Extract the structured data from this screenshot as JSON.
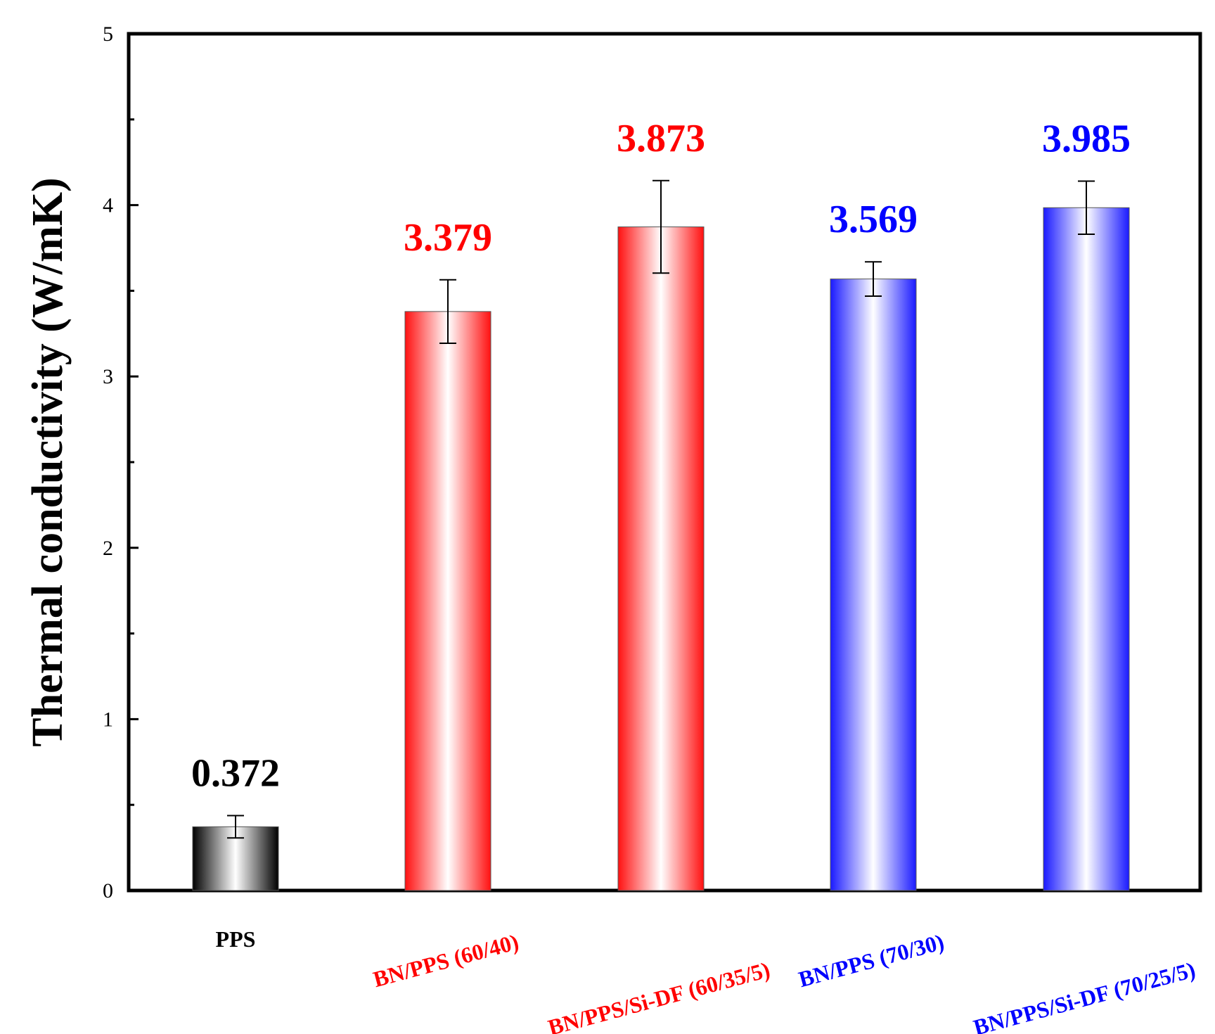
{
  "chart_data": {
    "type": "bar",
    "title": "",
    "xlabel": "",
    "ylabel": "Thermal conductivity (W/mK)",
    "ylim": [
      0,
      5
    ],
    "yticks": [
      0,
      1,
      2,
      3,
      4,
      5
    ],
    "ytick_labels": [
      "0",
      "1",
      "2",
      "3",
      "4",
      "5"
    ],
    "grid": false,
    "categories": [
      "PPS",
      "BN/PPS (60/40)",
      "BN/PPS/Si-DF (60/35/5)",
      "BN/PPS (70/30)",
      "BN/PPS/Si-DF (70/25/5)"
    ],
    "values": [
      0.372,
      3.379,
      3.873,
      3.569,
      3.985
    ],
    "value_labels": [
      "0.372",
      "3.379",
      "3.873",
      "3.569",
      "3.985"
    ],
    "errors": [
      0.065,
      0.185,
      0.27,
      0.1,
      0.155
    ],
    "bar_colors": [
      "#000000",
      "#ff1010",
      "#ff1010",
      "#1a1aff",
      "#1a1aff"
    ],
    "label_colors": [
      "#000000",
      "#ff0000",
      "#ff0000",
      "#0000ff",
      "#0000ff"
    ]
  }
}
